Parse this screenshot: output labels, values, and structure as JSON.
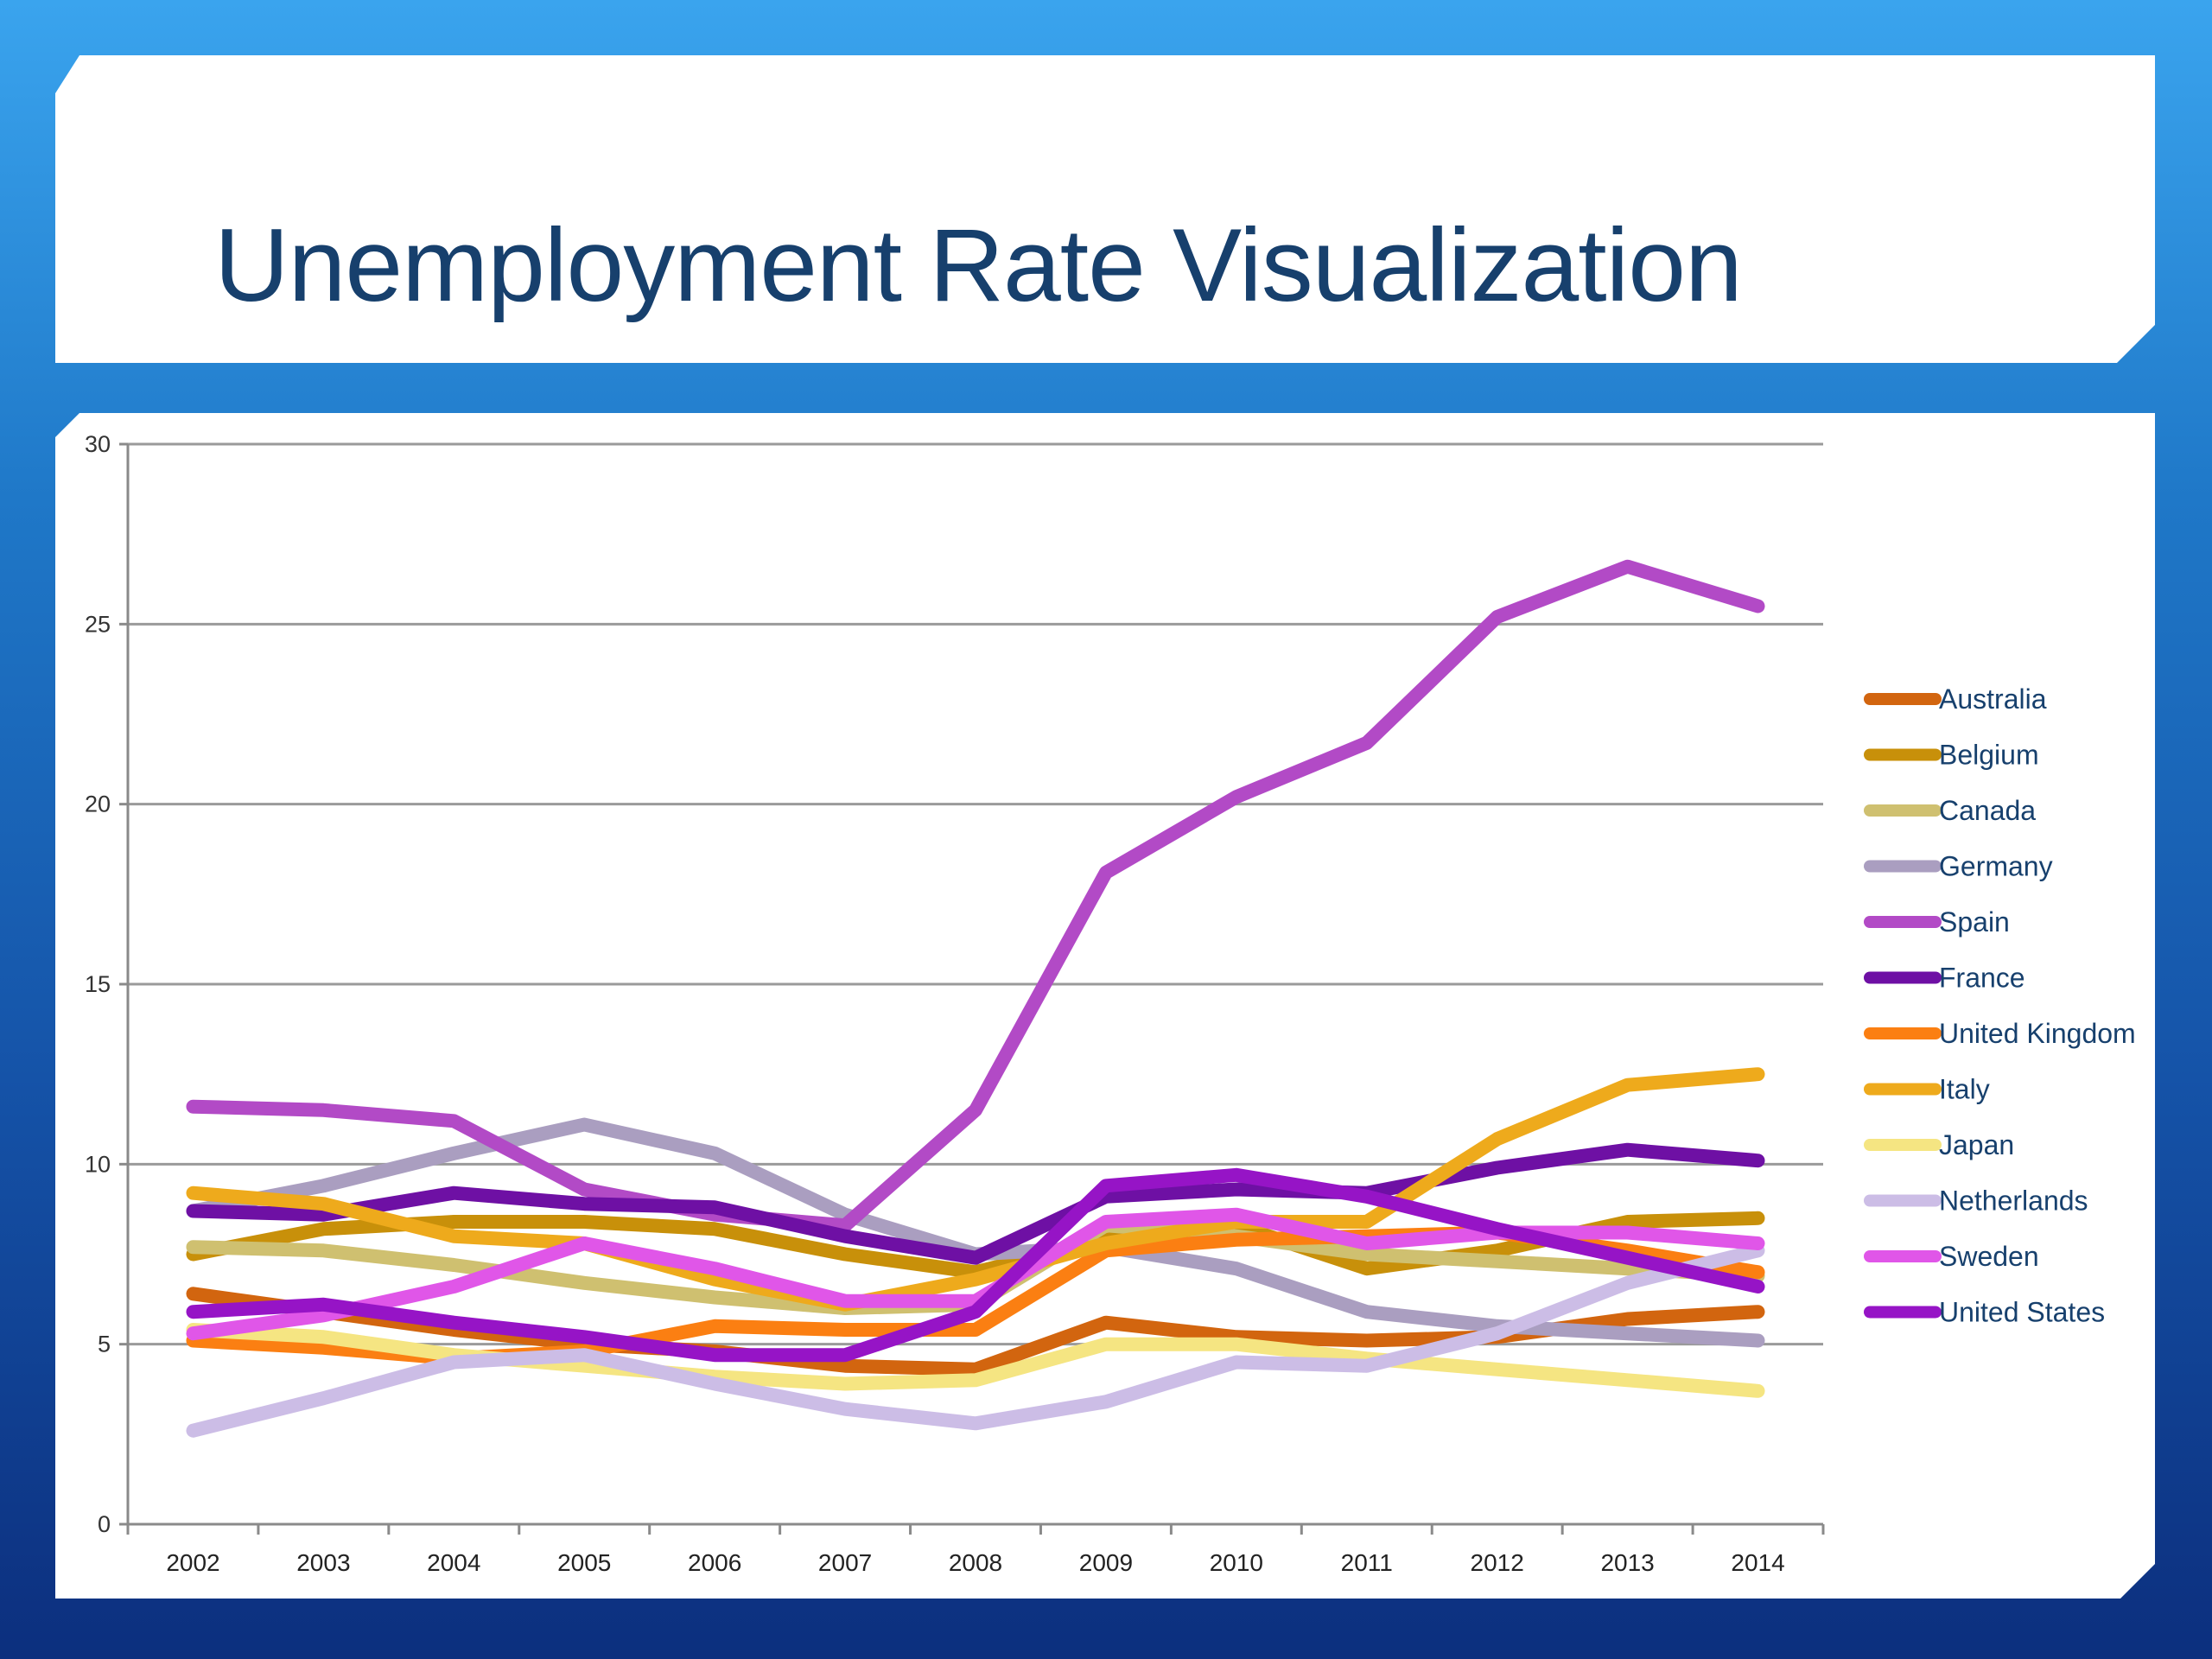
{
  "slide": {
    "title": "Unemployment Rate Visualization"
  },
  "chart_data": {
    "type": "line",
    "title": "",
    "xlabel": "",
    "ylabel": "",
    "ylim": [
      0,
      30
    ],
    "yticks": [
      0,
      5,
      10,
      15,
      20,
      25,
      30
    ],
    "grid": "horizontal",
    "legend": "right",
    "categories": [
      "2002",
      "2003",
      "2004",
      "2005",
      "2006",
      "2007",
      "2008",
      "2009",
      "2010",
      "2011",
      "2012",
      "2013",
      "2014"
    ],
    "series": [
      {
        "name": "Australia",
        "color": "#d2650f",
        "values": [
          6.4,
          5.9,
          5.4,
          5.0,
          4.8,
          4.4,
          4.3,
          5.6,
          5.2,
          5.1,
          5.2,
          5.7,
          5.9
        ]
      },
      {
        "name": "Belgium",
        "color": "#c8900a",
        "values": [
          7.5,
          8.2,
          8.4,
          8.4,
          8.2,
          7.5,
          7.0,
          7.9,
          8.3,
          7.1,
          7.6,
          8.4,
          8.5
        ]
      },
      {
        "name": "Canada",
        "color": "#cfc070",
        "values": [
          7.7,
          7.6,
          7.2,
          6.7,
          6.3,
          6.0,
          6.1,
          8.3,
          8.0,
          7.5,
          7.3,
          7.1,
          6.9
        ]
      },
      {
        "name": "Germany",
        "color": "#aa9ec0",
        "values": [
          8.7,
          9.4,
          10.3,
          11.1,
          10.3,
          8.6,
          7.5,
          7.7,
          7.1,
          5.9,
          5.5,
          5.3,
          5.1
        ]
      },
      {
        "name": "Spain",
        "color": "#b24ac6",
        "values": [
          11.6,
          11.5,
          11.2,
          9.3,
          8.6,
          8.3,
          11.5,
          18.1,
          20.2,
          21.7,
          25.2,
          26.6,
          25.5
        ]
      },
      {
        "name": "France",
        "color": "#6e10a4",
        "values": [
          8.7,
          8.6,
          9.2,
          8.9,
          8.8,
          8.0,
          7.4,
          9.1,
          9.3,
          9.2,
          9.9,
          10.4,
          10.1
        ]
      },
      {
        "name": "United Kingdom",
        "color": "#fb7f12",
        "values": [
          5.1,
          4.9,
          4.6,
          4.8,
          5.5,
          5.4,
          5.4,
          7.6,
          7.9,
          8.0,
          8.1,
          7.6,
          7.0
        ]
      },
      {
        "name": "Italy",
        "color": "#eeaa1c",
        "values": [
          9.2,
          8.9,
          8.0,
          7.8,
          6.8,
          6.1,
          6.8,
          7.8,
          8.4,
          8.4,
          10.7,
          12.2,
          12.5
        ]
      },
      {
        "name": "Japan",
        "color": "#f5e582",
        "values": [
          5.4,
          5.2,
          4.7,
          4.4,
          4.1,
          3.9,
          4.0,
          5.0,
          5.0,
          4.6,
          4.3,
          4.0,
          3.7
        ]
      },
      {
        "name": "Netherlands",
        "color": "#ccbde6",
        "values": [
          2.6,
          3.5,
          4.5,
          4.7,
          3.9,
          3.2,
          2.8,
          3.4,
          4.5,
          4.4,
          5.3,
          6.7,
          7.6
        ]
      },
      {
        "name": "Sweden",
        "color": "#e056e8",
        "values": [
          5.3,
          5.8,
          6.6,
          7.8,
          7.1,
          6.2,
          6.2,
          8.4,
          8.6,
          7.8,
          8.1,
          8.1,
          7.8
        ]
      },
      {
        "name": "United States",
        "color": "#9614c6",
        "values": [
          5.9,
          6.1,
          5.6,
          5.2,
          4.7,
          4.7,
          5.9,
          9.4,
          9.7,
          9.1,
          8.2,
          7.4,
          6.6
        ]
      }
    ]
  }
}
